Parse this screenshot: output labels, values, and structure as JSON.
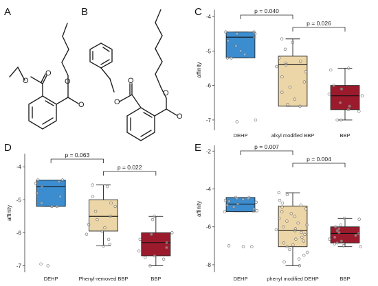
{
  "panels": {
    "A": "A",
    "B": "B",
    "C": "C",
    "D": "D",
    "E": "E"
  },
  "molecules": {
    "atom_label": "O"
  },
  "colors": {
    "DEHP": "#3c8dd0",
    "modified": "#ecd6a8",
    "BBP": "#9b1b2c"
  },
  "chart_data": [
    {
      "panel": "C",
      "type": "box",
      "ylabel": "affinity",
      "ylim": [
        -7.3,
        -3.8
      ],
      "yticks": [
        -4,
        -5,
        -6,
        -7
      ],
      "categories": [
        "DEHP",
        "alkyl modified BBP",
        "BBP"
      ],
      "boxes": [
        {
          "q1": -5.2,
          "median": -4.6,
          "q3": -4.45,
          "whisker_low": -5.2,
          "whisker_high": -4.45
        },
        {
          "q1": -6.6,
          "median": -5.4,
          "q3": -5.15,
          "whisker_low": -6.6,
          "whisker_high": -4.65
        },
        {
          "q1": -6.7,
          "median": -6.3,
          "q3": -6.0,
          "whisker_low": -7.0,
          "whisker_high": -5.5
        }
      ],
      "points": [
        [
          -4.45,
          -4.5,
          -4.45,
          -4.5,
          -4.6,
          -4.7,
          -4.85,
          -5.0,
          -5.1,
          -5.2,
          -5.2,
          -7.0,
          -7.05
        ],
        [
          -4.65,
          -4.75,
          -4.95,
          -5.2,
          -5.3,
          -5.35,
          -5.4,
          -5.45,
          -5.6,
          -5.75,
          -5.9,
          -6.05,
          -6.2,
          -6.4,
          -6.55,
          -6.6
        ],
        [
          -5.5,
          -5.55,
          -6.0,
          -6.1,
          -6.25,
          -6.3,
          -6.5,
          -6.6,
          -6.7,
          -6.75,
          -7.0,
          -7.0
        ]
      ],
      "comparisons": [
        {
          "from": 0,
          "to": 1,
          "label": "p = 0.040"
        },
        {
          "from": 1,
          "to": 2,
          "label": "p = 0.026"
        }
      ]
    },
    {
      "panel": "D",
      "type": "box",
      "ylabel": "affinity",
      "ylim": [
        -7.2,
        -3.6
      ],
      "yticks": [
        -4,
        -5,
        -6,
        -7
      ],
      "categories": [
        "DEHP",
        "Phenyl-removed BBP",
        "BBP"
      ],
      "boxes": [
        {
          "q1": -5.2,
          "median": -4.6,
          "q3": -4.4,
          "whisker_low": -5.2,
          "whisker_high": -4.4
        },
        {
          "q1": -5.95,
          "median": -5.5,
          "q3": -5.0,
          "whisker_low": -6.4,
          "whisker_high": -4.55
        },
        {
          "q1": -6.7,
          "median": -6.3,
          "q3": -6.0,
          "whisker_low": -7.0,
          "whisker_high": -5.5
        }
      ],
      "points": [
        [
          -4.4,
          -4.4,
          -4.45,
          -4.5,
          -4.6,
          -4.8,
          -4.9,
          -5.1,
          -5.2,
          -5.2,
          -6.95,
          -7.0
        ],
        [
          -4.55,
          -4.6,
          -4.9,
          -5.1,
          -5.2,
          -5.35,
          -5.5,
          -5.6,
          -5.75,
          -5.85,
          -5.95,
          -6.05,
          -6.2,
          -6.35,
          -6.4
        ],
        [
          -5.5,
          -5.6,
          -6.0,
          -6.05,
          -6.2,
          -6.3,
          -6.45,
          -6.55,
          -6.7,
          -6.75,
          -6.8,
          -7.0
        ]
      ],
      "comparisons": [
        {
          "from": 0,
          "to": 1,
          "label": "p = 0.063"
        },
        {
          "from": 1,
          "to": 2,
          "label": "p = 0.022"
        }
      ]
    },
    {
      "panel": "E",
      "type": "box",
      "ylabel": "affinity",
      "ylim": [
        -8.4,
        -1.7
      ],
      "yticks": [
        -2,
        -4,
        -6,
        -8
      ],
      "categories": [
        "DEHP",
        "phenyl modified DEHP",
        "BBP"
      ],
      "boxes": [
        {
          "q1": -5.2,
          "median": -4.8,
          "q3": -4.45,
          "whisker_low": -5.2,
          "whisker_high": -4.45
        },
        {
          "q1": -7.05,
          "median": -6.2,
          "q3": -4.9,
          "whisker_low": -8.05,
          "whisker_high": -4.2
        },
        {
          "q1": -6.85,
          "median": -6.35,
          "q3": -6.0,
          "whisker_low": -7.05,
          "whisker_high": -5.55
        }
      ],
      "points": [
        [
          -4.45,
          -4.45,
          -4.5,
          -4.5,
          -4.55,
          -4.6,
          -4.65,
          -4.7,
          -4.8,
          -4.85,
          -4.95,
          -5.05,
          -5.15,
          -5.2,
          -5.2,
          -7.0,
          -7.05,
          -7.05
        ],
        [
          -4.2,
          -4.3,
          -4.6,
          -4.75,
          -4.85,
          -4.95,
          -5.05,
          -5.2,
          -5.3,
          -5.45,
          -5.55,
          -5.7,
          -5.8,
          -5.9,
          -6.0,
          -6.1,
          -6.15,
          -6.2,
          -6.3,
          -6.4,
          -6.55,
          -6.65,
          -6.75,
          -6.85,
          -6.95,
          -7.05,
          -7.2,
          -7.35,
          -7.5,
          -7.7,
          -7.85,
          -8.05
        ],
        [
          -5.55,
          -5.6,
          -5.9,
          -6.0,
          -6.1,
          -6.2,
          -6.3,
          -6.35,
          -6.45,
          -6.55,
          -6.65,
          -6.75,
          -6.85,
          -6.9,
          -7.0,
          -7.05
        ]
      ],
      "comparisons": [
        {
          "from": 0,
          "to": 1,
          "label": "p = 0.007"
        },
        {
          "from": 1,
          "to": 2,
          "label": "p = 0.004"
        }
      ]
    }
  ]
}
